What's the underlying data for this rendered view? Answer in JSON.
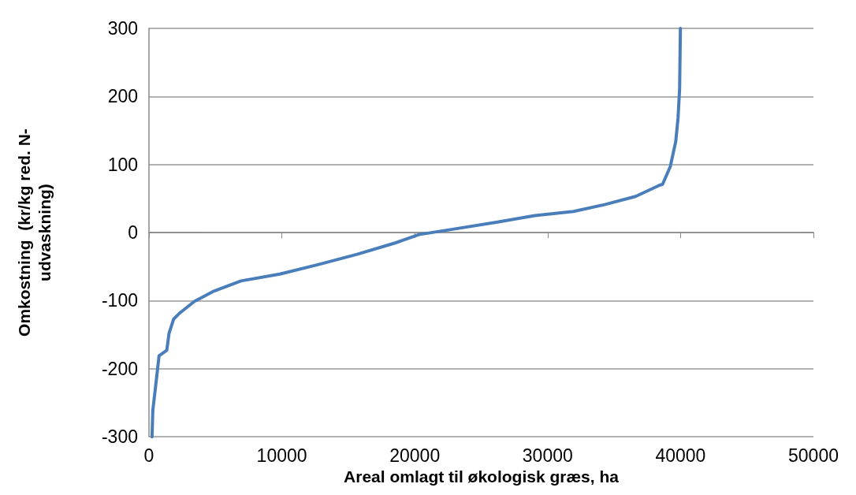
{
  "chart_data": {
    "type": "line",
    "xlabel": "Areal omlagt til økologisk græs, ha",
    "ylabel": "Omkostning  (kr/kg red. N-\nudvaskning)",
    "xlim": [
      0,
      50000
    ],
    "xticks": [
      0,
      10000,
      20000,
      30000,
      40000,
      50000
    ],
    "ylim": [
      -300,
      300
    ],
    "yticks": [
      -300,
      -200,
      -100,
      0,
      100,
      200,
      300
    ],
    "grid": "y",
    "marker": "none",
    "line_style": "solid",
    "series": [
      {
        "color": "#4a7ebb",
        "x": [
          230,
          290,
          470,
          760,
          1340,
          1510,
          1860,
          2270,
          3430,
          4890,
          6930,
          9840,
          12750,
          15660,
          18570,
          20310,
          23220,
          26130,
          29040,
          31950,
          34280,
          36610,
          38360,
          38650,
          39230,
          39640,
          39810,
          39930,
          39990
        ],
        "values": [
          -300,
          -261,
          -231,
          -181,
          -173,
          -148,
          -127,
          -119,
          -101,
          -86,
          -71,
          -61,
          -47,
          -32,
          -15,
          -3,
          6,
          15,
          25,
          31,
          41,
          53,
          69,
          71,
          97,
          134,
          168,
          211,
          300
        ]
      }
    ]
  }
}
